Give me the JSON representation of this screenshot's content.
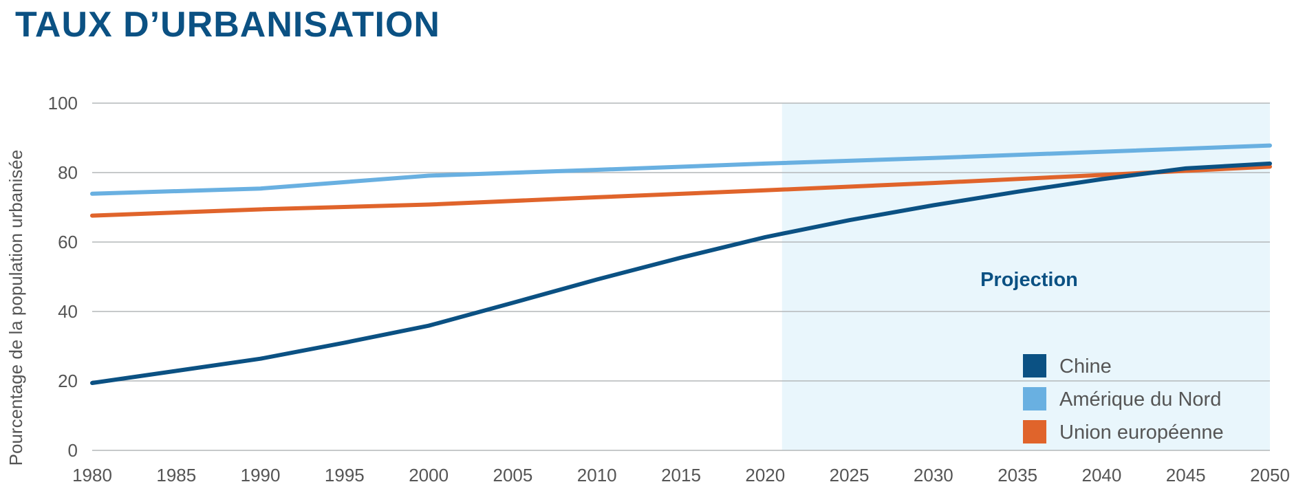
{
  "title": "TAUX D’URBANISATION",
  "chart_data": {
    "type": "line",
    "title": "TAUX D’URBANISATION",
    "xlabel": "",
    "ylabel": "Pourcentage de la population urbanisée",
    "xlim": [
      1980,
      2050
    ],
    "ylim": [
      0,
      100
    ],
    "x_ticks": [
      1980,
      1985,
      1990,
      1995,
      2000,
      2005,
      2010,
      2015,
      2020,
      2025,
      2030,
      2035,
      2040,
      2045,
      2050
    ],
    "y_ticks": [
      0,
      20,
      40,
      60,
      80,
      100
    ],
    "grid": "horizontal",
    "projection": {
      "label": "Projection",
      "from": 2021,
      "to": 2050,
      "color": "#e9f6fc"
    },
    "legend_position": "bottom-right",
    "series": [
      {
        "name": "Chine",
        "color": "#0b5183",
        "x": [
          1980,
          1985,
          1990,
          1995,
          2000,
          2005,
          2010,
          2015,
          2020,
          2025,
          2030,
          2035,
          2040,
          2045,
          2050
        ],
        "values": [
          19.4,
          22.9,
          26.4,
          31.0,
          35.9,
          42.5,
          49.2,
          55.5,
          61.4,
          66.3,
          70.6,
          74.5,
          78.1,
          81.2,
          82.6
        ]
      },
      {
        "name": "Amérique du Nord",
        "color": "#69b0e1",
        "x": [
          1980,
          1990,
          2000,
          2010,
          2020,
          2030,
          2040,
          2050
        ],
        "values": [
          73.9,
          75.4,
          79.1,
          80.8,
          82.6,
          84.2,
          86.0,
          87.8
        ]
      },
      {
        "name": "Union européenne",
        "color": "#e0642b",
        "x": [
          1980,
          1990,
          2000,
          2010,
          2020,
          2030,
          2040,
          2050
        ],
        "values": [
          67.6,
          69.4,
          70.8,
          72.9,
          74.9,
          77.0,
          79.3,
          81.7
        ]
      }
    ]
  }
}
